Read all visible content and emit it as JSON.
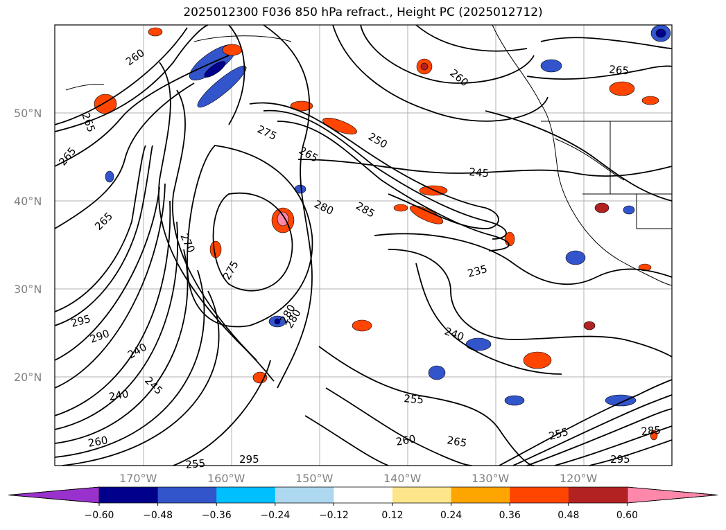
{
  "title": "2025012300 F036 850 hPa refract., Height PC (2025012712)",
  "lat_labels": [
    "50°N",
    "40°N",
    "30°N",
    "20°N"
  ],
  "lon_labels": [
    "170°W",
    "160°W",
    "150°W",
    "140°W",
    "130°W",
    "120°W"
  ],
  "contour_labels": [
    "260",
    "265",
    "265",
    "275",
    "265",
    "250",
    "245",
    "280",
    "285",
    "265",
    "270",
    "275",
    "280",
    "235",
    "240",
    "255",
    "260",
    "265",
    "295",
    "290",
    "240",
    "245",
    "240",
    "255",
    "260",
    "265",
    "285",
    "295",
    "255",
    "295",
    "280",
    "260"
  ],
  "colorbar": {
    "ticks": [
      "−0.60",
      "−0.48",
      "−0.36",
      "−0.24",
      "−0.12",
      "0.12",
      "0.24",
      "0.36",
      "0.48",
      "0.60"
    ],
    "colors": [
      "#9932cc",
      "#00008b",
      "#3355cc",
      "#00bfff",
      "#add8f0",
      "#ffffff",
      "#fde68a",
      "#ffa500",
      "#ff4500",
      "#b22222",
      "#ff88aa"
    ]
  }
}
